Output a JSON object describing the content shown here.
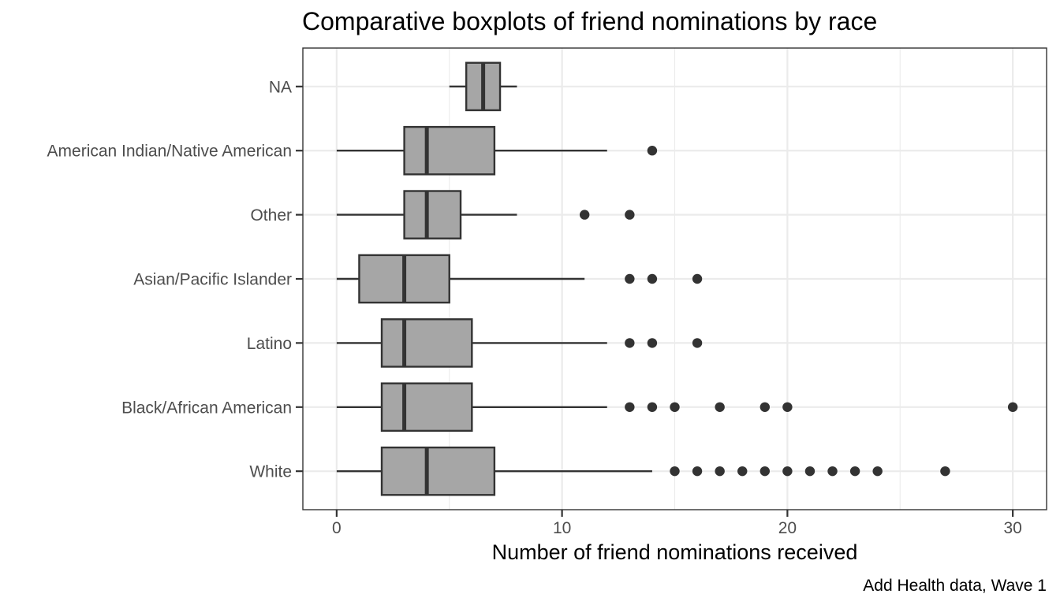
{
  "chart_data": {
    "type": "boxplot",
    "title": "Comparative boxplots of friend nominations by race",
    "xlabel": "Number of friend nominations received",
    "ylabel": "",
    "caption": "Add Health data, Wave 1",
    "xlim": [
      -1.5,
      31.5
    ],
    "x_ticks": [
      0,
      10,
      20,
      30
    ],
    "x_minor_ticks": [
      5,
      15,
      25
    ],
    "grid": true,
    "orientation": "horizontal",
    "categories": [
      "White",
      "Black/African American",
      "Latino",
      "Asian/Pacific Islander",
      "Other",
      "American Indian/Native American",
      "NA"
    ],
    "boxes": [
      {
        "category": "White",
        "whisker_low": 0,
        "q1": 2,
        "median": 4,
        "q3": 7,
        "whisker_high": 14,
        "outliers": [
          15,
          16,
          17,
          18,
          19,
          20,
          21,
          22,
          23,
          24,
          27
        ]
      },
      {
        "category": "Black/African American",
        "whisker_low": 0,
        "q1": 2,
        "median": 3,
        "q3": 6,
        "whisker_high": 12,
        "outliers": [
          13,
          14,
          15,
          17,
          19,
          20,
          30
        ]
      },
      {
        "category": "Latino",
        "whisker_low": 0,
        "q1": 2,
        "median": 3,
        "q3": 6,
        "whisker_high": 12,
        "outliers": [
          13,
          14,
          16
        ]
      },
      {
        "category": "Asian/Pacific Islander",
        "whisker_low": 0,
        "q1": 1,
        "median": 3,
        "q3": 5,
        "whisker_high": 11,
        "outliers": [
          13,
          14,
          16
        ]
      },
      {
        "category": "Other",
        "whisker_low": 0,
        "q1": 3,
        "median": 4,
        "q3": 5.5,
        "whisker_high": 8,
        "outliers": [
          11,
          13
        ]
      },
      {
        "category": "American Indian/Native American",
        "whisker_low": 0,
        "q1": 3,
        "median": 4,
        "q3": 7,
        "whisker_high": 12,
        "outliers": [
          14
        ]
      },
      {
        "category": "NA",
        "whisker_low": 5,
        "q1": 5.75,
        "median": 6.5,
        "q3": 7.25,
        "whisker_high": 8,
        "outliers": []
      }
    ],
    "colors": {
      "box_fill": "#a6a6a6",
      "box_stroke": "#333333",
      "outlier": "#333333",
      "grid": "#ebebeb",
      "background": "#ffffff"
    }
  }
}
